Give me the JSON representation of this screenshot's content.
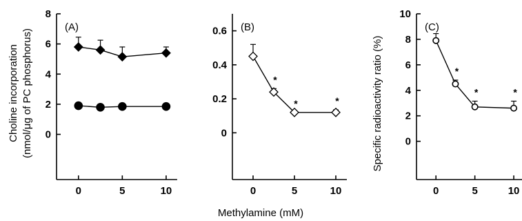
{
  "figure": {
    "xlabel": "Methylamine (mM)"
  },
  "chart_data": [
    {
      "type": "line",
      "panel_label": "(A)",
      "ylabel_line1": "Choline incorporation",
      "ylabel_line2": "(nmol/μg of PC phosphorus)",
      "xlim": [
        -2.5,
        11.5
      ],
      "ylim": [
        -3,
        8
      ],
      "xticks": [
        0,
        5,
        10
      ],
      "yticks": [
        0,
        2,
        4,
        6,
        8
      ],
      "series": [
        {
          "marker": "diamond",
          "fill": "filled",
          "x": [
            0,
            2.5,
            5,
            10
          ],
          "y": [
            5.8,
            5.6,
            5.15,
            5.4
          ],
          "err": [
            0.65,
            0.65,
            0.65,
            0.4
          ]
        },
        {
          "marker": "circle",
          "fill": "filled",
          "x": [
            0,
            2.5,
            5,
            10
          ],
          "y": [
            1.9,
            1.8,
            1.85,
            1.85
          ],
          "err": [
            0,
            0,
            0,
            0
          ]
        }
      ],
      "significance": []
    },
    {
      "type": "line",
      "panel_label": "(B)",
      "xlim": [
        -2.5,
        11.5
      ],
      "ylim": [
        -0.275,
        0.7
      ],
      "xticks": [
        0,
        5,
        10
      ],
      "yticks": [
        0,
        0.2,
        0.4,
        0.6
      ],
      "series": [
        {
          "marker": "diamond",
          "fill": "open",
          "x": [
            0,
            2.5,
            5,
            10
          ],
          "y": [
            0.45,
            0.24,
            0.12,
            0.12
          ],
          "err": [
            0.07,
            0.02,
            0.0,
            0.015
          ]
        }
      ],
      "significance": [
        {
          "x": 2.5,
          "label": "*"
        },
        {
          "x": 5,
          "label": "*"
        },
        {
          "x": 10,
          "label": "*"
        }
      ]
    },
    {
      "type": "line",
      "panel_label": "(C)",
      "ylabel": "Specific radioactivity ratio (%)",
      "xlim": [
        -2.5,
        11.5
      ],
      "ylim": [
        -3,
        10
      ],
      "xticks": [
        0,
        5,
        10
      ],
      "yticks": [
        0,
        2,
        4,
        6,
        8,
        10
      ],
      "series": [
        {
          "marker": "circle",
          "fill": "open",
          "x": [
            0,
            2.5,
            5,
            10
          ],
          "y": [
            7.9,
            4.5,
            2.7,
            2.6
          ],
          "err": [
            0.55,
            0.3,
            0.45,
            0.55
          ]
        }
      ],
      "significance": [
        {
          "x": 2.5,
          "label": "*"
        },
        {
          "x": 5,
          "label": "*"
        },
        {
          "x": 10,
          "label": "*"
        }
      ]
    }
  ]
}
